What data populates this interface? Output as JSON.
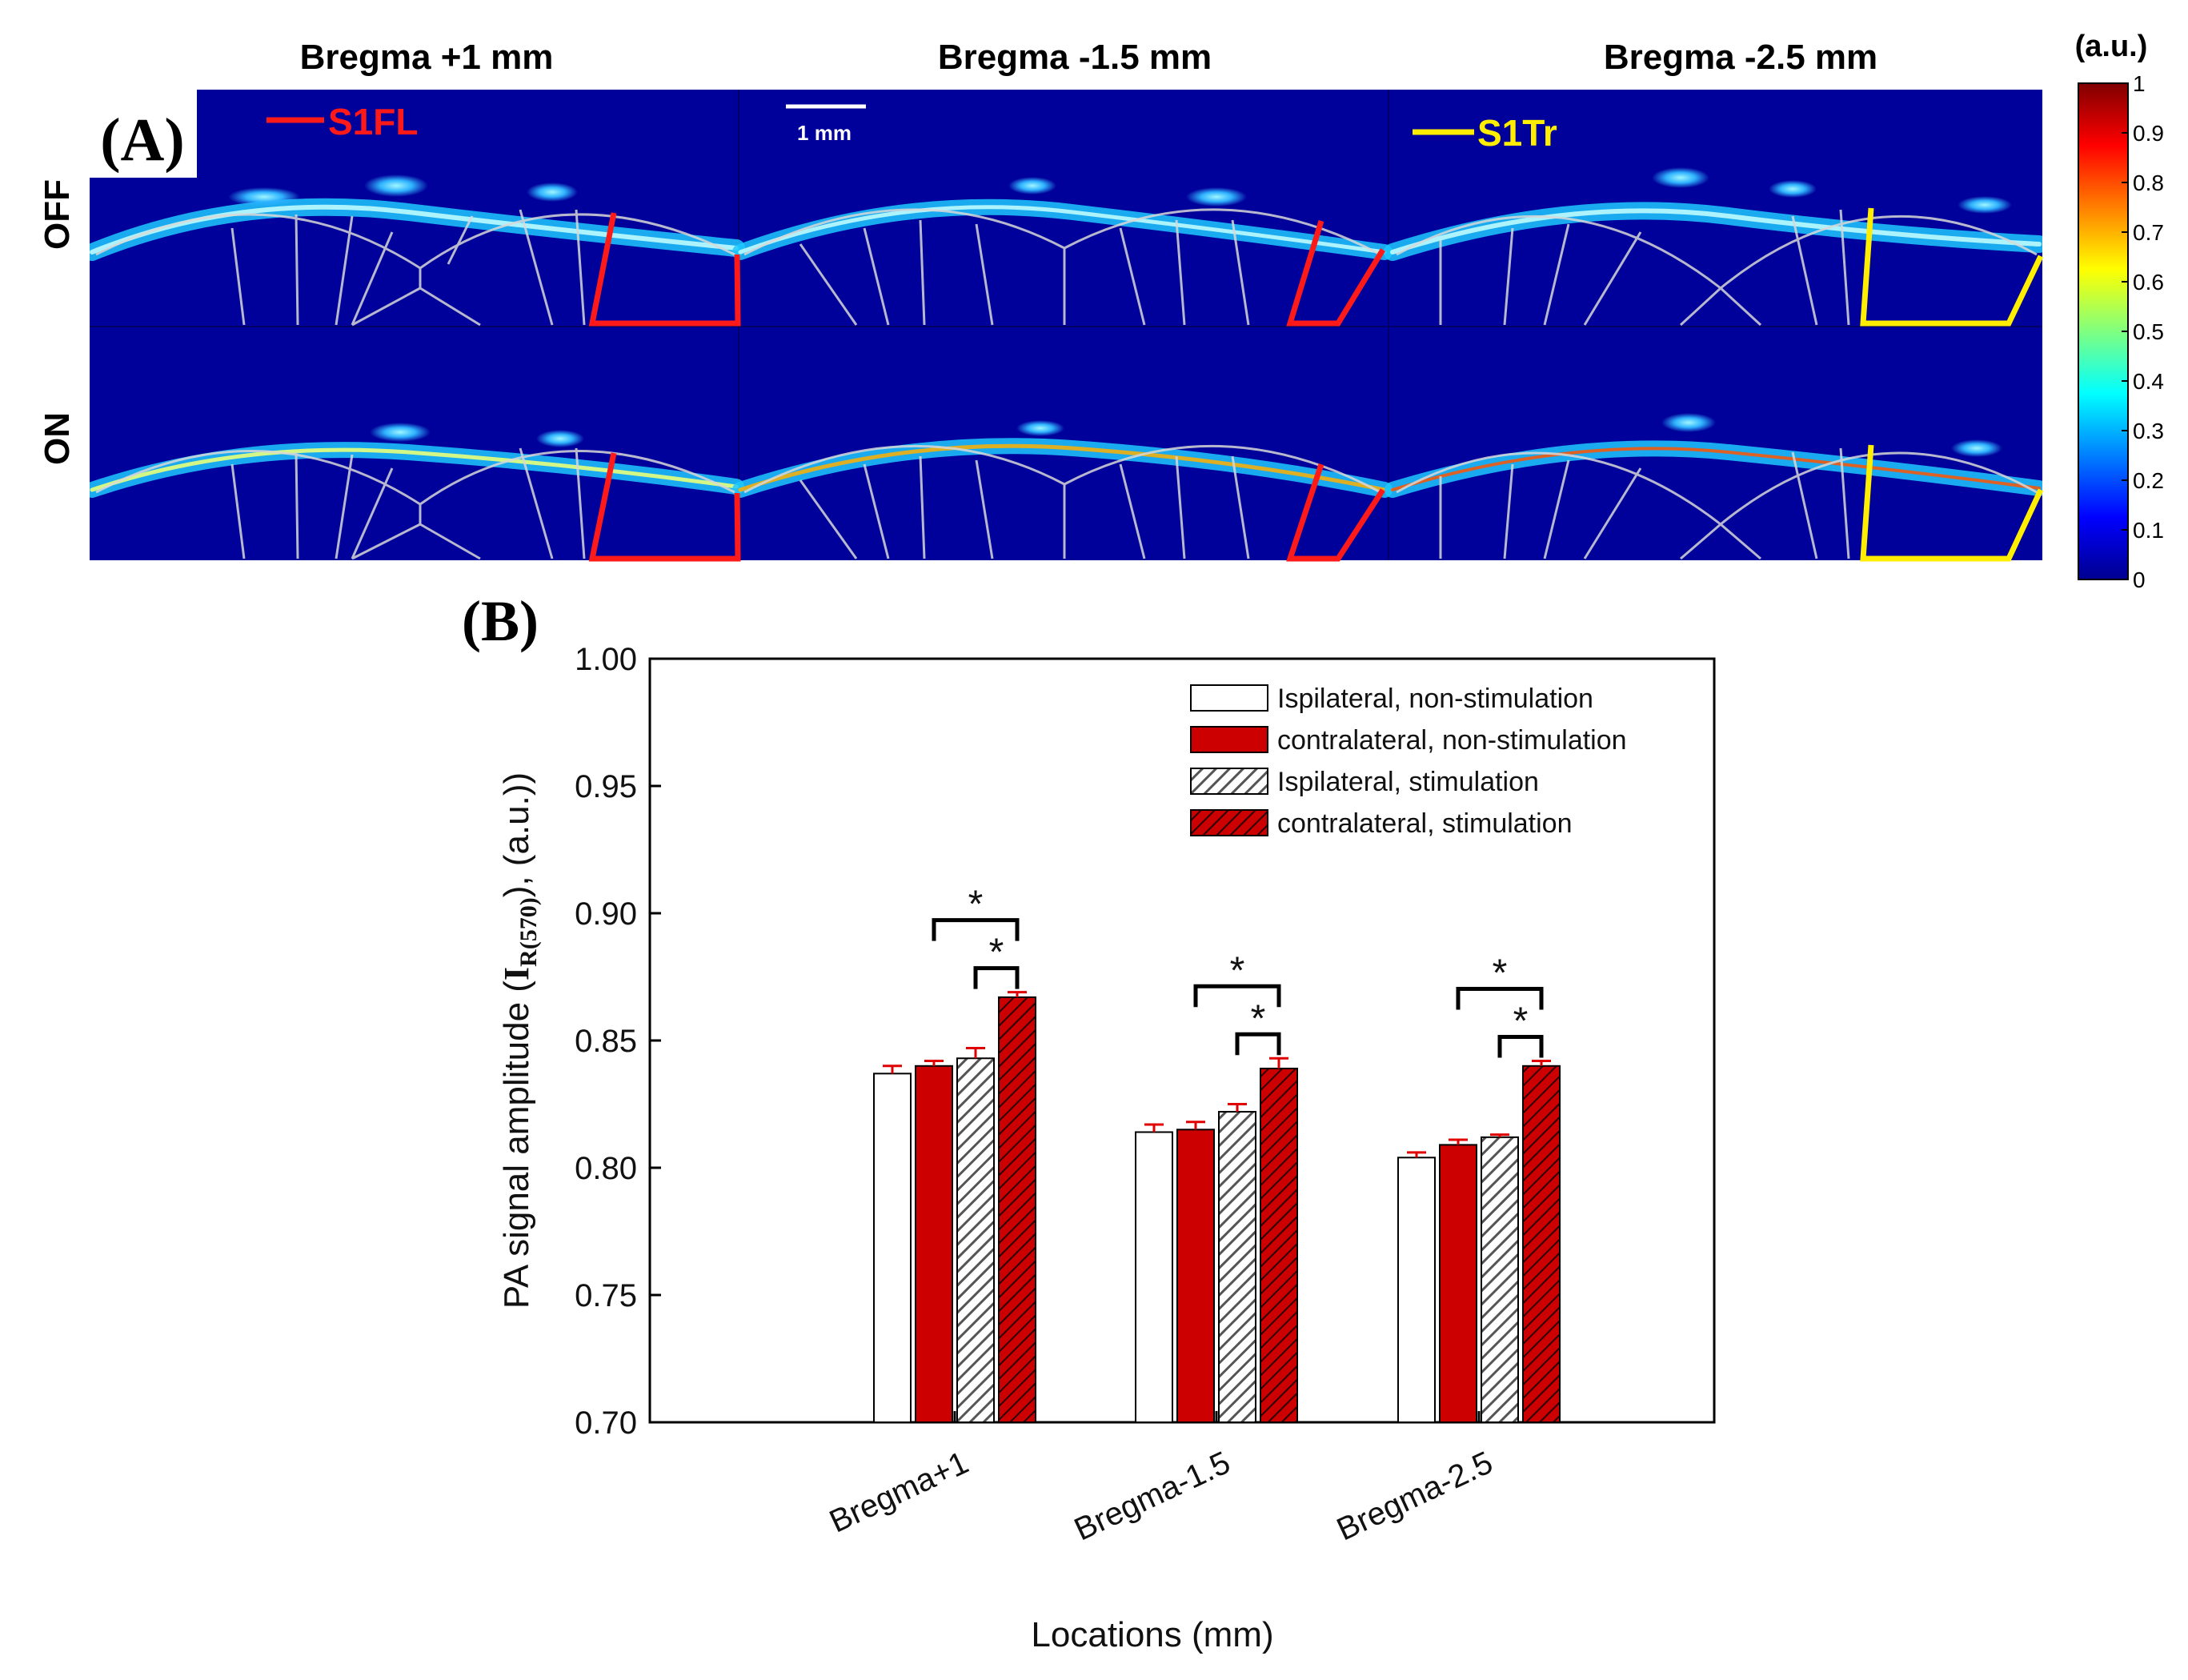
{
  "panel_a": {
    "label": "(A)",
    "columns": [
      "Bregma +1 mm",
      "Bregma -1.5 mm",
      "Bregma -2.5 mm"
    ],
    "rows": [
      "OFF",
      "ON"
    ],
    "roi_labels": {
      "left": "S1FL",
      "right": "S1Tr"
    },
    "roi_colors": {
      "left": "#ff1a1a",
      "right": "#ffee00"
    },
    "scalebar_label": "1 mm",
    "colorbar": {
      "title": "(a.u.)",
      "ticks": [
        "0",
        "0.1",
        "0.2",
        "0.3",
        "0.4",
        "0.5",
        "0.6",
        "0.7",
        "0.8",
        "0.9",
        "1"
      ]
    }
  },
  "panel_b": {
    "label": "(B)"
  },
  "chart_data": {
    "type": "bar",
    "categories": [
      "Bregma+1",
      "Bregma-1.5",
      "Bregma-2.5"
    ],
    "series": [
      {
        "name": "Ispilateral, non-stimulation",
        "values": [
          0.837,
          0.814,
          0.804
        ],
        "errors": [
          0.003,
          0.003,
          0.002
        ],
        "fill": "#ffffff",
        "hatched": false
      },
      {
        "name": "contralateral, non-stimulation",
        "values": [
          0.84,
          0.815,
          0.809
        ],
        "errors": [
          0.002,
          0.003,
          0.002
        ],
        "fill": "#cc0000",
        "hatched": false
      },
      {
        "name": "Ispilateral,  stimulation",
        "values": [
          0.843,
          0.822,
          0.812
        ],
        "errors": [
          0.004,
          0.003,
          0.001
        ],
        "fill": "#bbbbbb",
        "hatched": true
      },
      {
        "name": "contralateral, stimulation",
        "values": [
          0.867,
          0.839,
          0.84
        ],
        "errors": [
          0.002,
          0.004,
          0.002
        ],
        "fill": "#cc0000",
        "hatched": true
      }
    ],
    "significance": [
      {
        "category": 0,
        "from": 2,
        "to": 3,
        "label": "*"
      },
      {
        "category": 0,
        "from": 1,
        "to": 3,
        "label": "*"
      },
      {
        "category": 1,
        "from": 2,
        "to": 3,
        "label": "*"
      },
      {
        "category": 1,
        "from": 1,
        "to": 3,
        "label": "*"
      },
      {
        "category": 2,
        "from": 2,
        "to": 3,
        "label": "*"
      },
      {
        "category": 2,
        "from": 1,
        "to": 3,
        "label": "*"
      }
    ],
    "ylim": [
      0.7,
      1.0
    ],
    "yticks": [
      "0.70",
      "0.75",
      "0.80",
      "0.85",
      "0.90",
      "0.95",
      "1.00"
    ],
    "ylabel_prefix": "PA signal amplitude (",
    "ylabel_I": "I",
    "ylabel_sub": "R(570)",
    "ylabel_suffix": "), (a.u.))",
    "xlabel": "Locations (mm)",
    "legend_position": "top-right"
  }
}
